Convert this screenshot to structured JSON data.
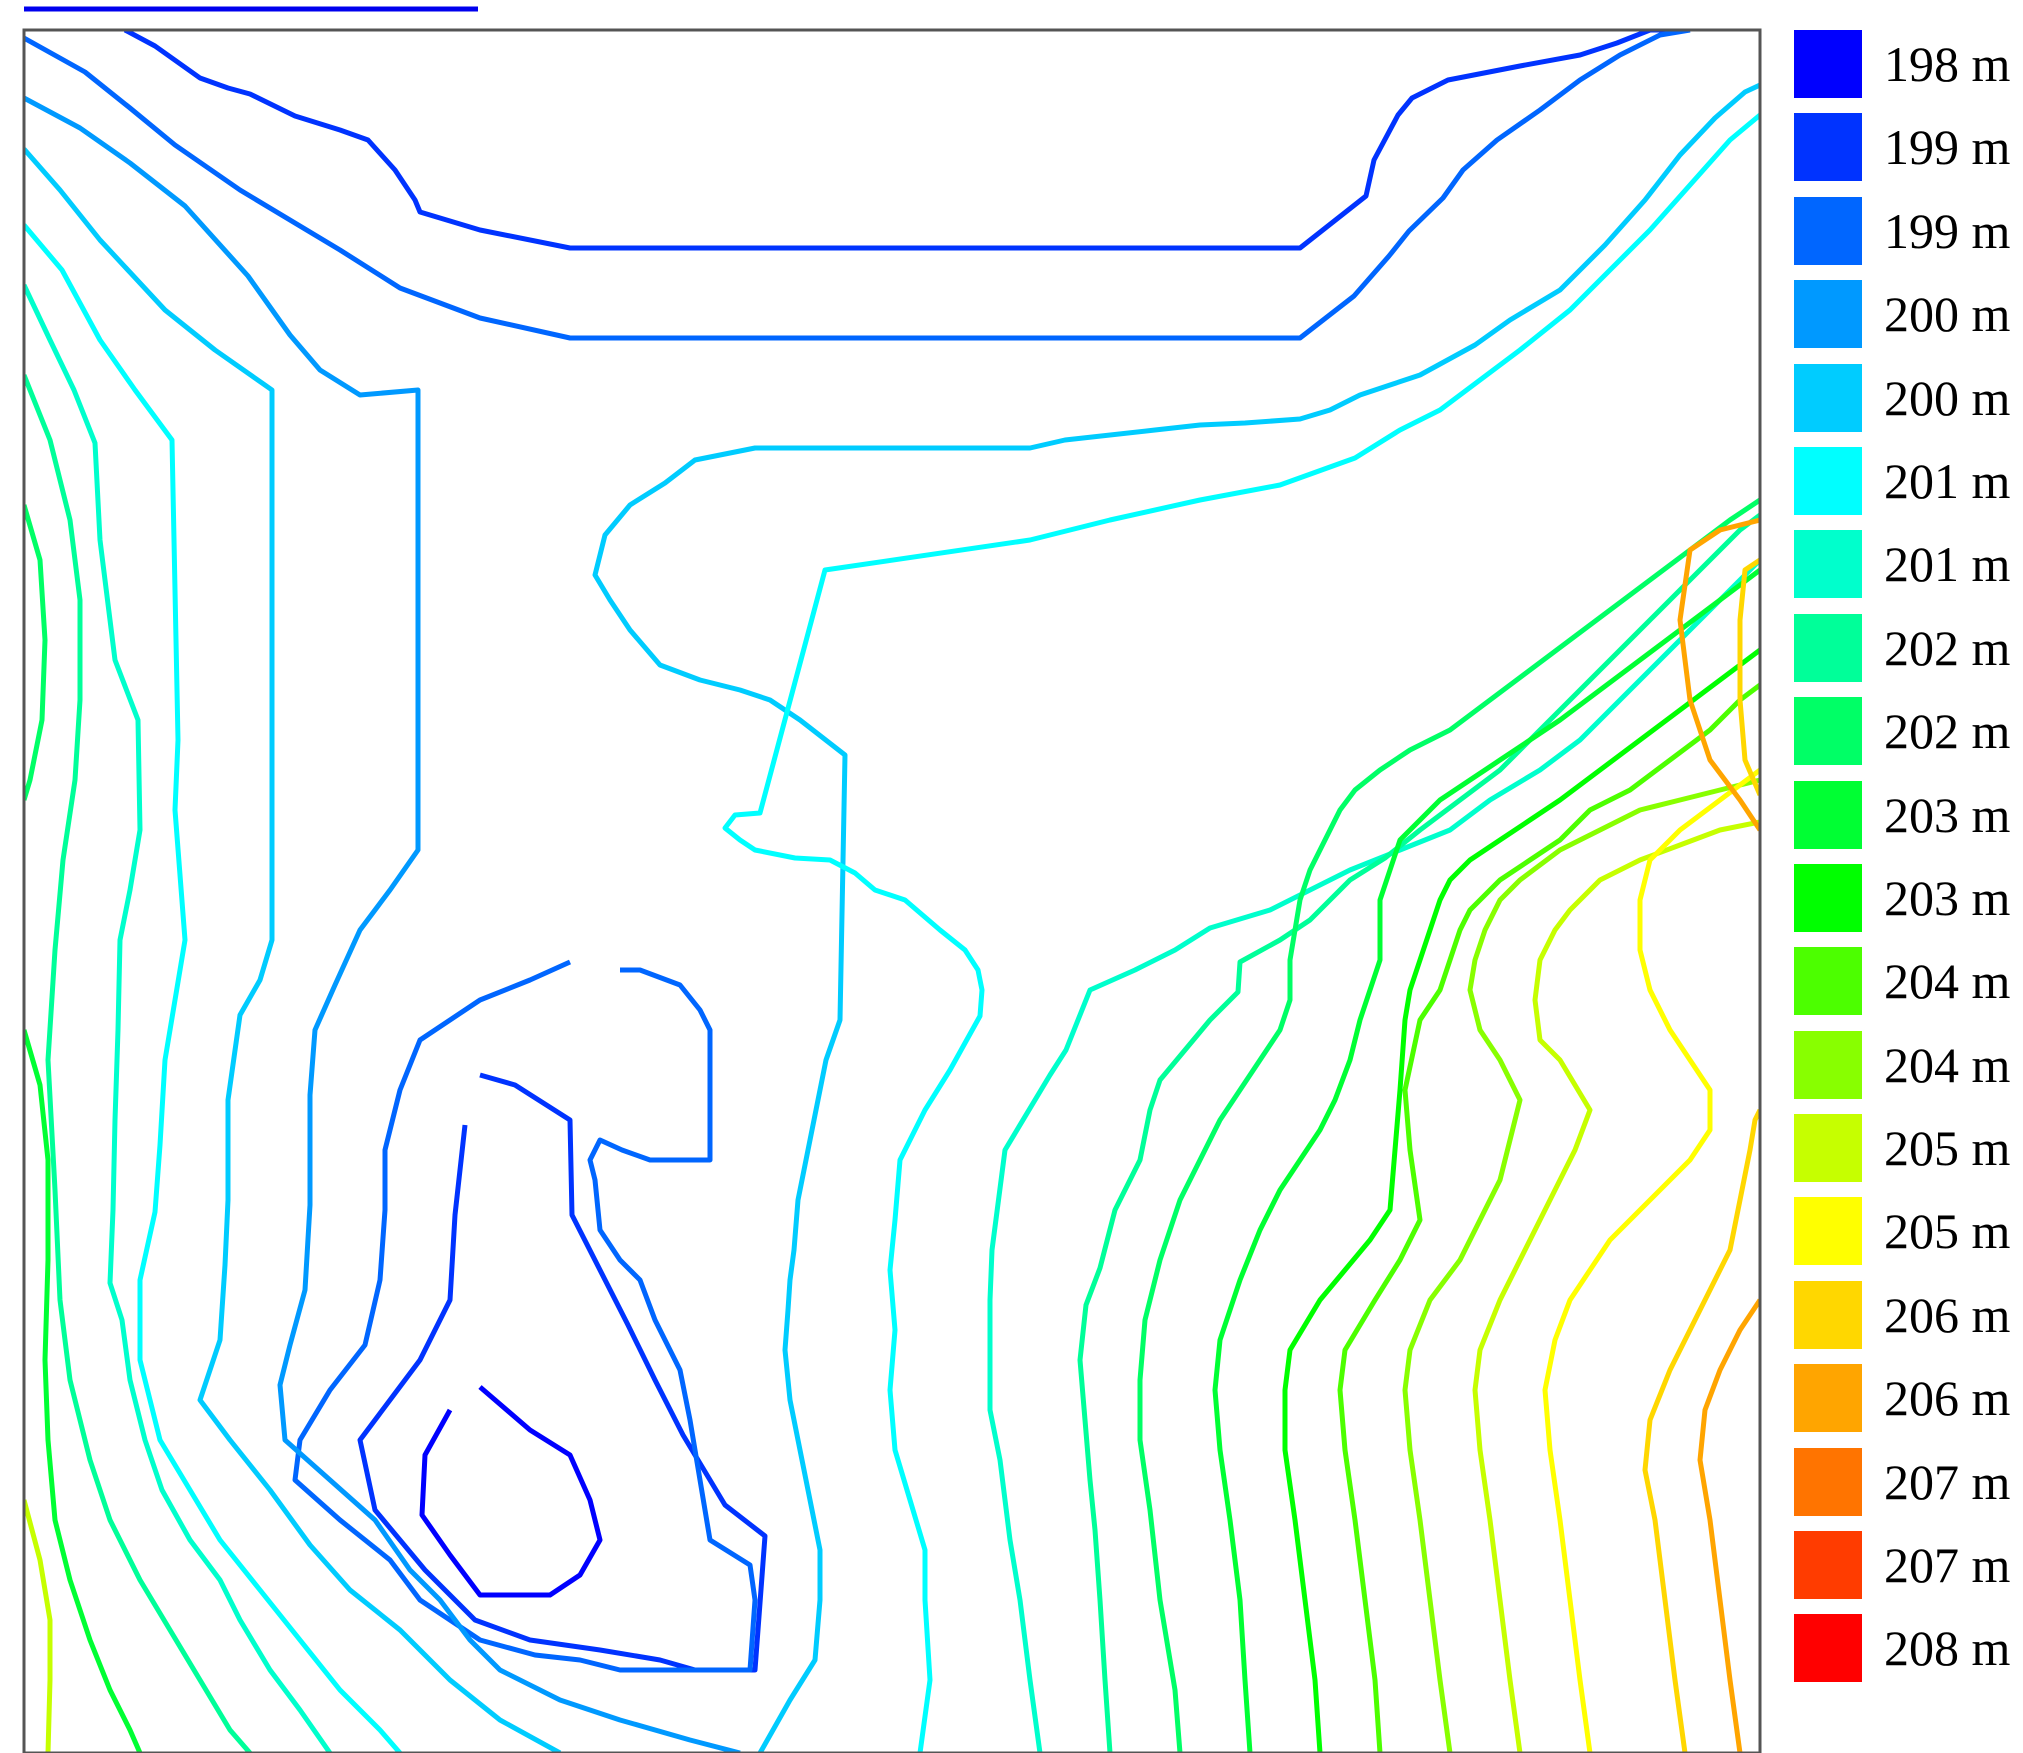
{
  "chart_data": {
    "type": "contour",
    "title": "",
    "xlabel": "",
    "ylabel": "",
    "grid": false,
    "legend_position": "right",
    "unit": "m",
    "levels": [
      {
        "label": "198 m",
        "color": "#0000ff"
      },
      {
        "label": "199 m",
        "color": "#0033ff"
      },
      {
        "label": "199 m",
        "color": "#0066ff"
      },
      {
        "label": "200 m",
        "color": "#0099ff"
      },
      {
        "label": "200 m",
        "color": "#00ccff"
      },
      {
        "label": "201 m",
        "color": "#00ffff"
      },
      {
        "label": "201 m",
        "color": "#00ffcc"
      },
      {
        "label": "202 m",
        "color": "#00ff99"
      },
      {
        "label": "202 m",
        "color": "#00ff66"
      },
      {
        "label": "203 m",
        "color": "#00ff33"
      },
      {
        "label": "203 m",
        "color": "#00ff00"
      },
      {
        "label": "204 m",
        "color": "#4cff00"
      },
      {
        "label": "204 m",
        "color": "#88ff00"
      },
      {
        "label": "205 m",
        "color": "#c6ff00"
      },
      {
        "label": "205 m",
        "color": "#ffff00"
      },
      {
        "label": "206 m",
        "color": "#ffd700"
      },
      {
        "label": "206 m",
        "color": "#ffa500"
      },
      {
        "label": "207 m",
        "color": "#ff7400"
      },
      {
        "label": "207 m",
        "color": "#ff3c00"
      },
      {
        "label": "208 m",
        "color": "#ff0000"
      }
    ]
  }
}
